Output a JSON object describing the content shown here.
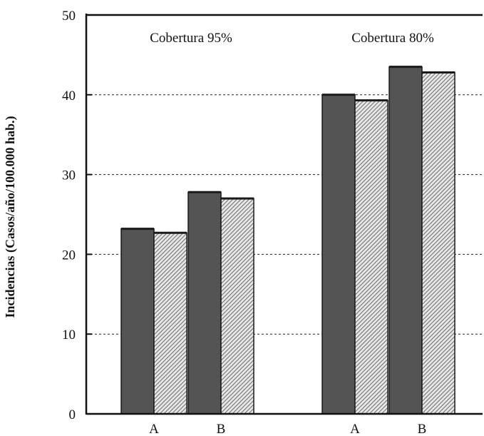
{
  "chart_data": {
    "type": "bar",
    "ylabel": "Incidencias (Casos/año/100.000 hab.)",
    "ylim": [
      0,
      50
    ],
    "yticks": [
      "0",
      "10",
      "20",
      "30",
      "40",
      "50"
    ],
    "grid": "dashed horizontal at 10, 20, 30, 40",
    "groups": [
      {
        "title": "Cobertura 95%",
        "categories": [
          "A",
          "B"
        ],
        "series": [
          {
            "style": "solid",
            "values": [
              23.2,
              27.8
            ]
          },
          {
            "style": "hatched",
            "values": [
              22.7,
              27.0
            ]
          }
        ]
      },
      {
        "title": "Cobertura 80%",
        "categories": [
          "A",
          "B"
        ],
        "series": [
          {
            "style": "solid",
            "values": [
              40.0,
              43.5
            ]
          },
          {
            "style": "hatched",
            "values": [
              39.3,
              42.8
            ]
          }
        ]
      }
    ],
    "colors": {
      "solid": "#545454",
      "hatched": "#bdbdbd",
      "outline": "#1a1a1a"
    }
  }
}
